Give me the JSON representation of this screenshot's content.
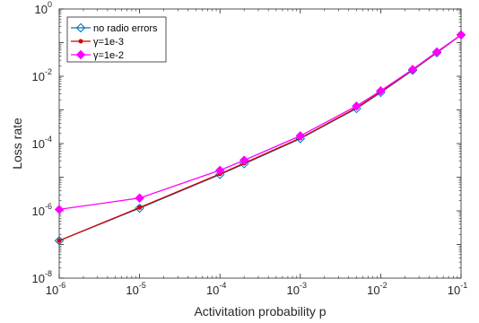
{
  "chart_data": {
    "type": "line",
    "xscale": "log",
    "yscale": "log",
    "xlim": [
      1e-06,
      0.1
    ],
    "ylim": [
      1e-08,
      1
    ],
    "xlabel": "Activitation probability p",
    "ylabel": "Loss rate",
    "grid": false,
    "legend_position": "top-left",
    "x_ticks": [
      {
        "base": "10",
        "exp": "-6"
      },
      {
        "base": "10",
        "exp": "-5"
      },
      {
        "base": "10",
        "exp": "-4"
      },
      {
        "base": "10",
        "exp": "-3"
      },
      {
        "base": "10",
        "exp": "-2"
      },
      {
        "base": "10",
        "exp": "-1"
      }
    ],
    "y_ticks": [
      {
        "base": "10",
        "exp": "-8"
      },
      {
        "base": "10",
        "exp": "-6"
      },
      {
        "base": "10",
        "exp": "-4"
      },
      {
        "base": "10",
        "exp": "-2"
      },
      {
        "base": "10",
        "exp": "0"
      }
    ],
    "x": [
      1e-06,
      1e-05,
      0.0001,
      0.0002,
      0.001,
      0.005,
      0.01,
      0.025,
      0.05,
      0.1
    ],
    "series": [
      {
        "name": "no radio errors",
        "color": "#0072BD",
        "marker": "diamond",
        "values": [
          1.3e-07,
          1.2e-06,
          1.2e-05,
          2.5e-05,
          0.00014,
          0.0011,
          0.0033,
          0.015,
          0.05,
          0.17
        ]
      },
      {
        "name": "γ=1e-3",
        "color": "#D40000",
        "marker": "dot",
        "values": [
          1.3e-07,
          1.25e-06,
          1.25e-05,
          2.6e-05,
          0.000145,
          0.00115,
          0.0034,
          0.0155,
          0.051,
          0.17
        ]
      },
      {
        "name": "γ=1e-2",
        "color": "#FF00FF",
        "marker": "diamond-filled",
        "values": [
          1.1e-06,
          2.4e-06,
          1.6e-05,
          3.2e-05,
          0.00017,
          0.0013,
          0.0037,
          0.016,
          0.053,
          0.17
        ]
      }
    ]
  }
}
